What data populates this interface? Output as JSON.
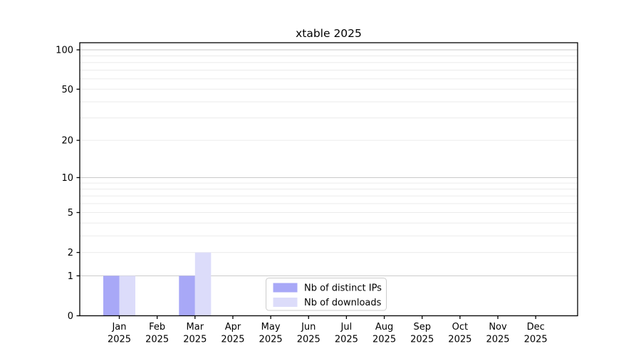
{
  "figure": {
    "title": "xtable 2025"
  },
  "chart_data": {
    "type": "bar",
    "title": "xtable 2025",
    "categories": [
      "Jan",
      "Feb",
      "Mar",
      "Apr",
      "May",
      "Jun",
      "Jul",
      "Aug",
      "Sep",
      "Oct",
      "Nov",
      "Dec"
    ],
    "category_year": "2025",
    "series": [
      {
        "name": "Nb of distinct IPs",
        "color": "#a8a8f7",
        "values": [
          1,
          0,
          1,
          0,
          0,
          0,
          0,
          0,
          0,
          0,
          0,
          0
        ]
      },
      {
        "name": "Nb of downloads",
        "color": "#dcdcfa",
        "values": [
          1,
          0,
          2,
          0,
          0,
          0,
          0,
          0,
          0,
          0,
          0,
          0
        ]
      }
    ],
    "yticks": [
      0,
      1,
      2,
      5,
      10,
      20,
      50,
      100
    ],
    "minor_grid_values": [
      2,
      3,
      4,
      5,
      6,
      7,
      8,
      9,
      20,
      30,
      40,
      50,
      60,
      70,
      80,
      90
    ],
    "major_grid_values": [
      1,
      10,
      100
    ],
    "ylim": [
      0,
      100
    ],
    "yscale": "log1p",
    "grid": true,
    "legend_position": "lower center inside",
    "colors": {
      "bar_ips": "#a8a8f7",
      "bar_downloads": "#dcdcfa",
      "major_grid": "#c9c9c9",
      "minor_grid": "#ebebeb",
      "frame": "#000000",
      "legend_border": "#cccccc",
      "background": "#ffffff"
    }
  }
}
